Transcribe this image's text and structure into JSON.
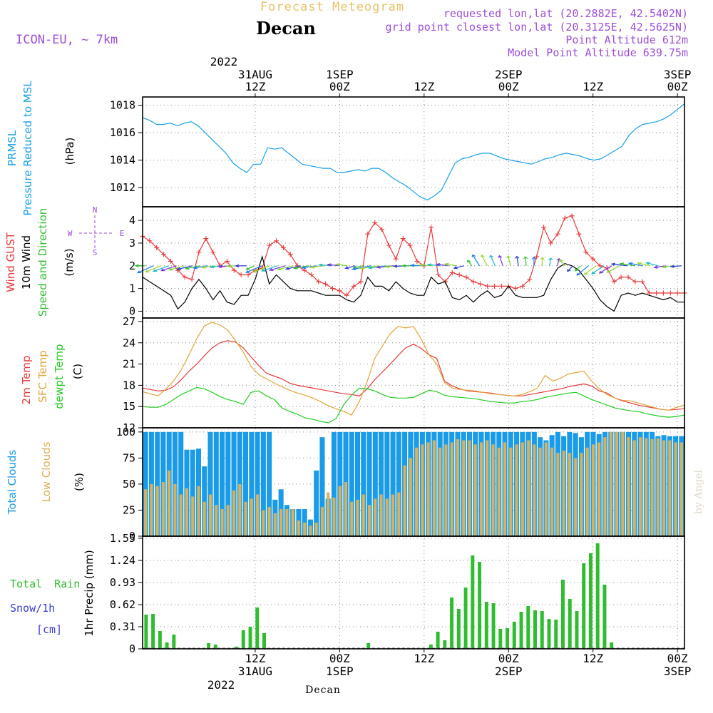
{
  "header": {
    "title": "Forecast Meteogram",
    "location": "Decan",
    "model": "ICON-EU, ~ 7km",
    "requested_point": "requested lon,lat (20.2882E, 42.5402N)",
    "grid_point": "grid point closest lon,lat (20.3125E, 42.5625N)",
    "point_altitude": "Point Altitude 612m",
    "model_altitude": "Model Point Altitude 639.75m",
    "credit": "by Angel",
    "footer_location": "Decan"
  },
  "time_axis": {
    "top_year": "2022",
    "labels": [
      {
        "top": "31AUG",
        "hour": "12Z",
        "hours_from_start": 16
      },
      {
        "top": "1SEP",
        "hour": "00Z",
        "hours_from_start": 28
      },
      {
        "top": "",
        "hour": "12Z",
        "hours_from_start": 40
      },
      {
        "top": "2SEP",
        "hour": "00Z",
        "hours_from_start": 52
      },
      {
        "top": "",
        "hour": "12Z",
        "hours_from_start": 64
      },
      {
        "top": "3SEP",
        "hour": "00Z",
        "hours_from_start": 76
      }
    ],
    "bottom_year": "2022",
    "range_hours": [
      0,
      77
    ]
  },
  "colors": {
    "pressure": "#1aa0e6",
    "gust": "#e8393b",
    "wind": "#000000",
    "wind_dir": "#2fbf2f",
    "temp2m": "#e8393b",
    "sfc": "#e0a63a",
    "dewpt": "#22cc22",
    "total_clouds": "#1a9be8",
    "low_clouds": "#d8b25a",
    "rain": "#2ebd2e",
    "snow": "#3b3bd6",
    "header": "#9b4fd6"
  },
  "chart_data": [
    {
      "type": "line",
      "title": "",
      "ylabel_1": "PRMSL",
      "ylabel_2": "Pressure Reduced to MSL",
      "unit": "(hPa)",
      "ylim": [
        1010.6,
        1018.6
      ],
      "yticks": [
        "1012",
        "1014",
        "1016",
        "1018"
      ],
      "series": [
        {
          "values": [
            1017.1,
            1016.9,
            1016.6,
            1016.6,
            1016.7,
            1016.5,
            1016.7,
            1016.8,
            1016.5,
            1016.0,
            1015.5,
            1015.0,
            1014.5,
            1013.8,
            1013.4,
            1013.1,
            1013.7,
            1013.7,
            1014.9,
            1014.8,
            1014.9,
            1014.5,
            1014.1,
            1013.7,
            1013.6,
            1013.5,
            1013.4,
            1013.4,
            1013.1,
            1013.1,
            1013.2,
            1013.3,
            1013.2,
            1013.4,
            1013.4,
            1013.1,
            1012.7,
            1012.4,
            1012.1,
            1011.7,
            1011.3,
            1011.1,
            1011.4,
            1011.8,
            1012.8,
            1013.8,
            1014.1,
            1014.2,
            1014.4,
            1014.5,
            1014.5,
            1014.3,
            1014.1,
            1014.0,
            1013.9,
            1013.8,
            1013.7,
            1013.9,
            1014.1,
            1014.2,
            1014.4,
            1014.5,
            1014.4,
            1014.3,
            1014.1,
            1014.0,
            1014.1,
            1014.4,
            1014.7,
            1015.0,
            1015.8,
            1016.3,
            1016.6,
            1016.7,
            1016.8,
            1017.0,
            1017.3,
            1017.7,
            1018.1
          ]
        }
      ]
    },
    {
      "type": "line",
      "title": "",
      "ylabel_1": "Wind GUST",
      "ylabel_2": "10m Wind",
      "ylabel_3": "Speed and Direction",
      "unit": "(m/s)",
      "compass": {
        "n": "N",
        "s": "S",
        "w": "W",
        "e": "E"
      },
      "ylim": [
        -0.3,
        4.6
      ],
      "yticks": [
        "0",
        "1",
        "2",
        "3",
        "4"
      ],
      "series": [
        {
          "name": "Wind GUST",
          "values": [
            3.3,
            3.1,
            2.8,
            2.5,
            2.2,
            1.8,
            1.5,
            1.4,
            2.6,
            3.2,
            2.6,
            2.0,
            2.2,
            1.8,
            1.6,
            1.6,
            1.8,
            1.9,
            2.9,
            3.1,
            2.8,
            2.5,
            2.0,
            1.8,
            1.6,
            1.3,
            1.2,
            1.0,
            0.9,
            0.7,
            1.1,
            1.3,
            3.4,
            3.9,
            3.6,
            2.9,
            2.3,
            3.2,
            2.9,
            2.2,
            2.0,
            3.7,
            1.6,
            1.3,
            1.7,
            1.6,
            1.5,
            1.3,
            1.2,
            1.1,
            1.1,
            1.1,
            1.1,
            1.0,
            1.1,
            1.4,
            2.4,
            3.7,
            3.0,
            3.4,
            4.1,
            4.2,
            3.4,
            2.6,
            2.3,
            2.0,
            1.9,
            1.3,
            1.5,
            1.5,
            1.3,
            1.3,
            0.8,
            0.8,
            0.8,
            0.8,
            0.8,
            0.8
          ]
        },
        {
          "name": "10m Wind",
          "values": [
            1.5,
            1.3,
            1.1,
            0.9,
            0.7,
            0.1,
            0.4,
            1.0,
            1.4,
            1.0,
            0.5,
            0.9,
            0.4,
            0.3,
            0.7,
            0.7,
            1.4,
            2.4,
            1.2,
            1.6,
            1.3,
            1.0,
            0.9,
            0.9,
            0.9,
            0.8,
            0.7,
            0.7,
            0.7,
            0.5,
            0.4,
            0.7,
            1.5,
            1.1,
            1.1,
            0.9,
            1.3,
            1.0,
            0.8,
            0.7,
            0.7,
            1.5,
            1.2,
            1.3,
            0.6,
            0.5,
            0.7,
            0.4,
            0.7,
            0.9,
            0.6,
            0.7,
            1.1,
            0.7,
            0.6,
            0.6,
            0.6,
            0.7,
            1.4,
            1.9,
            2.1,
            2.0,
            1.8,
            1.4,
            1.0,
            0.5,
            0.2,
            0.0,
            0.7,
            0.8,
            0.7,
            0.8,
            0.7,
            0.6,
            0.5,
            0.6,
            0.4,
            0.4
          ]
        }
      ]
    },
    {
      "type": "line",
      "title": "",
      "ylabel_1": "2m Temp",
      "ylabel_2": "SFC Temp",
      "ylabel_3": "dewpt Temp",
      "unit": "(C)",
      "ylim": [
        12,
        27.5
      ],
      "yticks": [
        "12",
        "15",
        "18",
        "21",
        "24",
        "27"
      ],
      "series": [
        {
          "name": "2m Temp",
          "values": [
            17.6,
            17.4,
            17.2,
            17.3,
            17.8,
            18.8,
            20.0,
            21.0,
            22.2,
            23.3,
            24.0,
            24.3,
            24.1,
            23.3,
            22.0,
            20.8,
            19.7,
            19.3,
            18.9,
            18.3,
            18.0,
            17.8,
            17.6,
            17.4,
            17.2,
            17.0,
            16.8,
            16.7,
            16.5,
            17.5,
            18.8,
            19.9,
            21.0,
            22.2,
            23.3,
            23.8,
            23.2,
            22.3,
            21.8,
            18.6,
            17.9,
            17.5,
            17.2,
            17.1,
            17.0,
            16.9,
            16.7,
            16.6,
            16.5,
            16.5,
            16.7,
            16.9,
            17.1,
            17.3,
            17.5,
            17.8,
            18.0,
            18.2,
            17.9,
            17.2,
            16.9,
            16.2,
            15.8,
            15.5,
            15.2,
            15.0,
            14.8,
            14.6,
            14.5,
            14.6,
            14.7
          ]
        },
        {
          "name": "SFC Temp",
          "values": [
            17.1,
            16.8,
            16.5,
            17.5,
            18.6,
            20.2,
            22.3,
            24.6,
            26.4,
            26.9,
            26.5,
            25.8,
            24.3,
            22.7,
            20.7,
            19.5,
            18.9,
            18.3,
            17.8,
            17.3,
            16.9,
            16.6,
            16.2,
            15.7,
            15.1,
            14.7,
            14.3,
            13.8,
            15.7,
            18.5,
            21.8,
            23.6,
            25.3,
            26.3,
            26.1,
            26.3,
            24.5,
            22.3,
            21.0,
            18.4,
            17.6,
            17.4,
            17.3,
            17.2,
            17.0,
            16.8,
            16.7,
            16.6,
            16.5,
            16.7,
            17.1,
            17.6,
            19.4,
            18.6,
            19.0,
            19.6,
            19.8,
            20.0,
            18.6,
            17.5,
            16.7,
            16.2,
            15.9,
            15.8,
            15.5,
            15.2,
            14.9,
            14.6,
            14.5,
            14.9,
            15.2
          ]
        },
        {
          "name": "dewpt Temp",
          "values": [
            15.0,
            14.9,
            14.9,
            15.3,
            16.0,
            16.7,
            17.2,
            17.7,
            17.5,
            17.0,
            16.4,
            16.0,
            15.7,
            15.3,
            17.0,
            17.2,
            16.5,
            16.0,
            14.8,
            14.3,
            13.9,
            13.4,
            13.2,
            12.9,
            12.7,
            13.3,
            15.3,
            16.6,
            17.6,
            17.5,
            17.2,
            16.7,
            16.3,
            16.2,
            16.2,
            16.3,
            16.8,
            17.3,
            17.1,
            16.6,
            16.4,
            16.3,
            16.2,
            16.1,
            15.9,
            15.7,
            15.6,
            15.5,
            15.5,
            15.7,
            15.8,
            16.0,
            16.3,
            16.5,
            16.7,
            16.9,
            17.0,
            16.5,
            16.0,
            15.6,
            15.2,
            14.8,
            14.6,
            14.4,
            14.3,
            14.0,
            13.8,
            13.6,
            13.5,
            13.6,
            13.8
          ]
        }
      ]
    },
    {
      "type": "bar",
      "title": "",
      "ylabel_1": "Total Clouds",
      "ylabel_2": "Low Clouds",
      "unit": "(%)",
      "ylim": [
        0,
        104
      ],
      "yticks": [
        "0",
        "25",
        "50",
        "75",
        "100"
      ],
      "series": [
        {
          "name": "Total Clouds",
          "values": [
            100,
            100,
            100,
            100,
            100,
            100,
            100,
            83,
            83,
            84,
            67,
            100,
            100,
            100,
            100,
            100,
            100,
            100,
            100,
            100,
            100,
            100,
            35,
            45,
            30,
            26,
            26,
            26,
            16,
            63,
            95,
            36,
            100,
            100,
            100,
            100,
            100,
            100,
            100,
            100,
            100,
            100,
            100,
            100,
            100,
            100,
            100,
            100,
            100,
            100,
            100,
            100,
            100,
            100,
            100,
            100,
            100,
            100,
            100,
            100,
            100,
            100,
            100,
            100,
            100,
            100,
            100,
            95,
            92,
            97,
            100,
            96,
            100,
            99,
            95,
            100,
            100,
            98,
            100,
            100,
            100,
            100,
            100,
            100,
            100,
            100,
            100,
            96,
            97,
            96,
            96,
            96
          ]
        },
        {
          "name": "Low Clouds",
          "values": [
            45,
            50,
            48,
            52,
            63,
            50,
            40,
            46,
            38,
            48,
            33,
            40,
            30,
            26,
            30,
            44,
            50,
            33,
            36,
            40,
            25,
            28,
            22,
            26,
            26,
            26,
            15,
            13,
            10,
            13,
            28,
            42,
            37,
            48,
            52,
            33,
            35,
            40,
            30,
            36,
            40,
            36,
            40,
            42,
            68,
            75,
            85,
            88,
            90,
            92,
            85,
            88,
            90,
            93,
            92,
            92,
            88,
            90,
            92,
            88,
            85,
            90,
            85,
            88,
            90,
            92,
            88,
            85,
            90,
            85,
            80,
            82,
            80,
            75,
            80,
            85,
            88,
            90,
            95,
            100,
            100,
            100,
            95,
            92,
            95,
            94,
            93,
            94,
            92,
            92,
            90,
            90
          ]
        }
      ]
    },
    {
      "type": "bar",
      "title": "",
      "ylabel_1": "1hr Precip (mm)",
      "left_label_1": "Total Rain",
      "left_label_2": "Snow/1h",
      "left_label_3": "[cm]",
      "ylim": [
        0,
        1.58
      ],
      "yticks": [
        "0",
        "0.31",
        "0.62",
        "0.93",
        "1.24",
        "1.55"
      ],
      "series": [
        {
          "name": "Total Rain",
          "values": [
            0.48,
            0.49,
            0.25,
            0.09,
            0.2,
            0,
            0,
            0,
            0,
            0.08,
            0.06,
            0,
            0,
            0.03,
            0.26,
            0.31,
            0.58,
            0.22,
            0,
            0,
            0,
            0,
            0,
            0,
            0,
            0,
            0,
            0,
            0,
            0,
            0,
            0,
            0.08,
            0,
            0,
            0,
            0,
            0,
            0,
            0,
            0,
            0.06,
            0.24,
            0.12,
            0.72,
            0.56,
            0.86,
            1.31,
            1.22,
            0.66,
            0.64,
            0.28,
            0.29,
            0.38,
            0.52,
            0.6,
            0.54,
            0.53,
            0.42,
            0.41,
            0.97,
            0.7,
            0.53,
            1.2,
            1.34,
            1.48,
            0.9,
            0.09,
            0,
            0,
            0,
            0,
            0,
            0,
            0,
            0,
            0,
            0
          ]
        },
        {
          "name": "Snow/1h",
          "values": []
        }
      ]
    }
  ]
}
